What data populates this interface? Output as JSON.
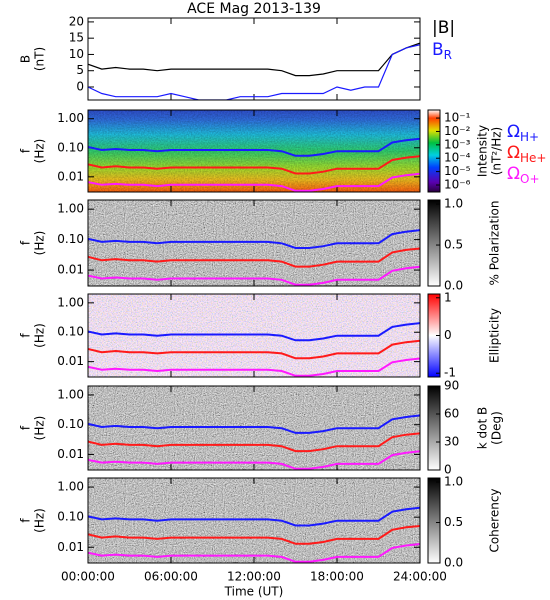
{
  "chart_data": [
    {
      "type": "line",
      "title": "ACE Mag 2013-139",
      "ylabel": [
        "B",
        "(nT)"
      ],
      "x": [
        0,
        1,
        2,
        3,
        4,
        5,
        6,
        7,
        8,
        9,
        10,
        11,
        12,
        13,
        14,
        15,
        16,
        17,
        18,
        19,
        20,
        21,
        22,
        23,
        24
      ],
      "xlim": [
        0,
        24
      ],
      "ylim": [
        -4,
        21.2
      ],
      "yticks": [
        0,
        5,
        10,
        15,
        20
      ],
      "series": [
        {
          "name": "|B|",
          "color": "#000000",
          "values": [
            7,
            5.5,
            6,
            5.5,
            5.5,
            5,
            5.5,
            5.5,
            5.5,
            5.5,
            5.5,
            5.5,
            5.5,
            5.5,
            5,
            3.5,
            3.5,
            4,
            5,
            5,
            5,
            5,
            10,
            12,
            13.5
          ]
        },
        {
          "name": "B",
          "name_sub": "R",
          "color": "#1a1aff",
          "values": [
            0,
            -2,
            -3,
            -3,
            -3,
            -3,
            -2,
            -3,
            -4,
            -4,
            -4,
            -3,
            -3,
            -3,
            -2,
            -2,
            -2,
            -2,
            0,
            -1,
            0,
            0,
            10,
            12,
            13
          ]
        }
      ]
    },
    {
      "type": "spectrogram",
      "ylabel": [
        "f",
        "(Hz)"
      ],
      "log": true,
      "x": [
        0,
        1,
        2,
        3,
        4,
        5,
        6,
        7,
        8,
        9,
        10,
        11,
        12,
        13,
        14,
        15,
        16,
        17,
        18,
        19,
        20,
        21,
        22,
        23,
        24
      ],
      "xlim": [
        0,
        24
      ],
      "ylim": [
        0.003,
        2
      ],
      "yticks": [
        {
          "value": 0.01,
          "label": "0.01"
        },
        {
          "value": 0.1,
          "label": "0.10"
        },
        {
          "value": 1,
          "label": "1.00"
        }
      ],
      "colormap": "rainbow",
      "clabel": [
        "Intensity",
        "(nT²/Hz)"
      ],
      "clog": true,
      "clim": [
        3e-07,
        0.4
      ],
      "cticks": [
        {
          "value": 0.1,
          "label": "10⁻¹"
        },
        {
          "value": 0.01,
          "label": "10⁻²"
        },
        {
          "value": 0.001,
          "label": "10⁻³"
        },
        {
          "value": 0.0001,
          "label": "10⁻⁴"
        },
        {
          "value": 1e-05,
          "label": "10⁻⁵"
        },
        {
          "value": 1e-06,
          "label": "10⁻⁶"
        }
      ],
      "series": [
        {
          "name": "Ω",
          "name_sub": "H+",
          "color": "#1a1aff",
          "values": [
            0.106,
            0.084,
            0.091,
            0.084,
            0.084,
            0.076,
            0.084,
            0.084,
            0.084,
            0.084,
            0.084,
            0.084,
            0.084,
            0.084,
            0.076,
            0.053,
            0.053,
            0.061,
            0.076,
            0.076,
            0.076,
            0.076,
            0.152,
            0.182,
            0.205
          ]
        },
        {
          "name": "Ω",
          "name_sub": "He+",
          "color": "#ff1a1a",
          "values": [
            0.027,
            0.021,
            0.023,
            0.021,
            0.021,
            0.019,
            0.021,
            0.021,
            0.021,
            0.021,
            0.021,
            0.021,
            0.021,
            0.021,
            0.019,
            0.013,
            0.013,
            0.015,
            0.019,
            0.019,
            0.019,
            0.019,
            0.038,
            0.046,
            0.051
          ]
        },
        {
          "name": "Ω",
          "name_sub": "O+",
          "color": "#ff1aff",
          "values": [
            0.0066,
            0.0053,
            0.0057,
            0.0053,
            0.0053,
            0.0048,
            0.0053,
            0.0053,
            0.0053,
            0.0053,
            0.0053,
            0.0053,
            0.0053,
            0.0053,
            0.0048,
            0.0033,
            0.0033,
            0.0038,
            0.0048,
            0.0048,
            0.0048,
            0.0048,
            0.0095,
            0.0114,
            0.0128
          ]
        }
      ]
    },
    {
      "type": "spectrogram",
      "ylabel": [
        "f",
        "(Hz)"
      ],
      "log": true,
      "x": [
        0,
        1,
        2,
        3,
        4,
        5,
        6,
        7,
        8,
        9,
        10,
        11,
        12,
        13,
        14,
        15,
        16,
        17,
        18,
        19,
        20,
        21,
        22,
        23,
        24
      ],
      "xlim": [
        0,
        24
      ],
      "ylim": [
        0.003,
        2
      ],
      "yticks": [
        {
          "value": 0.01,
          "label": "0.01"
        },
        {
          "value": 0.1,
          "label": "0.10"
        },
        {
          "value": 1,
          "label": "1.00"
        }
      ],
      "colormap": "greys",
      "clabel": [
        "% Polarization"
      ],
      "clim": [
        0,
        1.05
      ],
      "cticks": [
        {
          "value": 0,
          "label": "0.0"
        },
        0.5,
        {
          "value": 1,
          "label": "1.0"
        }
      ],
      "series": [
        {
          "color": "#1a1aff",
          "values": [
            0.106,
            0.084,
            0.091,
            0.084,
            0.084,
            0.076,
            0.084,
            0.084,
            0.084,
            0.084,
            0.084,
            0.084,
            0.084,
            0.084,
            0.076,
            0.053,
            0.053,
            0.061,
            0.076,
            0.076,
            0.076,
            0.076,
            0.152,
            0.182,
            0.205
          ]
        },
        {
          "color": "#ff1a1a",
          "values": [
            0.027,
            0.021,
            0.023,
            0.021,
            0.021,
            0.019,
            0.021,
            0.021,
            0.021,
            0.021,
            0.021,
            0.021,
            0.021,
            0.021,
            0.019,
            0.013,
            0.013,
            0.015,
            0.019,
            0.019,
            0.019,
            0.019,
            0.038,
            0.046,
            0.051
          ]
        },
        {
          "color": "#ff1aff",
          "values": [
            0.0066,
            0.0053,
            0.0057,
            0.0053,
            0.0053,
            0.0048,
            0.0053,
            0.0053,
            0.0053,
            0.0053,
            0.0053,
            0.0053,
            0.0053,
            0.0053,
            0.0048,
            0.0033,
            0.0033,
            0.0038,
            0.0048,
            0.0048,
            0.0048,
            0.0048,
            0.0095,
            0.0114,
            0.0128
          ]
        }
      ]
    },
    {
      "type": "spectrogram",
      "ylabel": [
        "f",
        "(Hz)"
      ],
      "log": true,
      "x": [
        0,
        1,
        2,
        3,
        4,
        5,
        6,
        7,
        8,
        9,
        10,
        11,
        12,
        13,
        14,
        15,
        16,
        17,
        18,
        19,
        20,
        21,
        22,
        23,
        24
      ],
      "xlim": [
        0,
        24
      ],
      "ylim": [
        0.003,
        2
      ],
      "yticks": [
        {
          "value": 0.01,
          "label": "0.01"
        },
        {
          "value": 0.1,
          "label": "0.10"
        },
        {
          "value": 1,
          "label": "1.00"
        }
      ],
      "colormap": "bwr",
      "clabel": [
        "Ellipticity"
      ],
      "clim": [
        -1.1,
        1.1
      ],
      "cticks": [
        -1,
        0,
        1
      ],
      "series": [
        {
          "color": "#1a1aff",
          "values": [
            0.106,
            0.084,
            0.091,
            0.084,
            0.084,
            0.076,
            0.084,
            0.084,
            0.084,
            0.084,
            0.084,
            0.084,
            0.084,
            0.084,
            0.076,
            0.053,
            0.053,
            0.061,
            0.076,
            0.076,
            0.076,
            0.076,
            0.152,
            0.182,
            0.205
          ]
        },
        {
          "color": "#ff1a1a",
          "values": [
            0.027,
            0.021,
            0.023,
            0.021,
            0.021,
            0.019,
            0.021,
            0.021,
            0.021,
            0.021,
            0.021,
            0.021,
            0.021,
            0.021,
            0.019,
            0.013,
            0.013,
            0.015,
            0.019,
            0.019,
            0.019,
            0.019,
            0.038,
            0.046,
            0.051
          ]
        },
        {
          "color": "#ff1aff",
          "values": [
            0.0066,
            0.0053,
            0.0057,
            0.0053,
            0.0053,
            0.0048,
            0.0053,
            0.0053,
            0.0053,
            0.0053,
            0.0053,
            0.0053,
            0.0053,
            0.0053,
            0.0048,
            0.0033,
            0.0033,
            0.0038,
            0.0048,
            0.0048,
            0.0048,
            0.0048,
            0.0095,
            0.0114,
            0.0128
          ]
        }
      ]
    },
    {
      "type": "spectrogram",
      "ylabel": [
        "f",
        "(Hz)"
      ],
      "log": true,
      "x": [
        0,
        1,
        2,
        3,
        4,
        5,
        6,
        7,
        8,
        9,
        10,
        11,
        12,
        13,
        14,
        15,
        16,
        17,
        18,
        19,
        20,
        21,
        22,
        23,
        24
      ],
      "xlim": [
        0,
        24
      ],
      "ylim": [
        0.003,
        2
      ],
      "yticks": [
        {
          "value": 0.01,
          "label": "0.01"
        },
        {
          "value": 0.1,
          "label": "0.10"
        },
        {
          "value": 1,
          "label": "1.00"
        }
      ],
      "colormap": "greys",
      "clabel": [
        "k dot B",
        "(Deg)"
      ],
      "clim": [
        0,
        90
      ],
      "cticks": [
        0,
        30,
        60,
        90
      ],
      "series": [
        {
          "color": "#1a1aff",
          "values": [
            0.106,
            0.084,
            0.091,
            0.084,
            0.084,
            0.076,
            0.084,
            0.084,
            0.084,
            0.084,
            0.084,
            0.084,
            0.084,
            0.084,
            0.076,
            0.053,
            0.053,
            0.061,
            0.076,
            0.076,
            0.076,
            0.076,
            0.152,
            0.182,
            0.205
          ]
        },
        {
          "color": "#ff1a1a",
          "values": [
            0.027,
            0.021,
            0.023,
            0.021,
            0.021,
            0.019,
            0.021,
            0.021,
            0.021,
            0.021,
            0.021,
            0.021,
            0.021,
            0.021,
            0.019,
            0.013,
            0.013,
            0.015,
            0.019,
            0.019,
            0.019,
            0.019,
            0.038,
            0.046,
            0.051
          ]
        },
        {
          "color": "#ff1aff",
          "values": [
            0.0066,
            0.0053,
            0.0057,
            0.0053,
            0.0053,
            0.0048,
            0.0053,
            0.0053,
            0.0053,
            0.0053,
            0.0053,
            0.0053,
            0.0053,
            0.0053,
            0.0048,
            0.0033,
            0.0033,
            0.0038,
            0.0048,
            0.0048,
            0.0048,
            0.0048,
            0.0095,
            0.0114,
            0.0128
          ]
        }
      ]
    },
    {
      "type": "spectrogram",
      "ylabel": [
        "f",
        "(Hz)"
      ],
      "log": true,
      "xlabel": "Time (UT)",
      "x": [
        0,
        1,
        2,
        3,
        4,
        5,
        6,
        7,
        8,
        9,
        10,
        11,
        12,
        13,
        14,
        15,
        16,
        17,
        18,
        19,
        20,
        21,
        22,
        23,
        24
      ],
      "xlim": [
        0,
        24
      ],
      "ylim": [
        0.003,
        2
      ],
      "xticks": [
        {
          "value": 0,
          "label": "00:00:00"
        },
        {
          "value": 6,
          "label": "06:00:00"
        },
        {
          "value": 12,
          "label": "12:00:00"
        },
        {
          "value": 18,
          "label": "18:00:00"
        },
        {
          "value": 24,
          "label": "24:00:00"
        }
      ],
      "yticks": [
        {
          "value": 0.01,
          "label": "0.01"
        },
        {
          "value": 0.1,
          "label": "0.10"
        },
        {
          "value": 1,
          "label": "1.00"
        }
      ],
      "colormap": "greys",
      "clabel": [
        "Coherency"
      ],
      "clim": [
        0,
        1.05
      ],
      "cticks": [
        {
          "value": 0,
          "label": "0.0"
        },
        0.5,
        {
          "value": 1,
          "label": "1.0"
        }
      ],
      "series": [
        {
          "color": "#1a1aff",
          "values": [
            0.106,
            0.084,
            0.091,
            0.084,
            0.084,
            0.076,
            0.084,
            0.084,
            0.084,
            0.084,
            0.084,
            0.084,
            0.084,
            0.084,
            0.076,
            0.053,
            0.053,
            0.061,
            0.076,
            0.076,
            0.076,
            0.076,
            0.152,
            0.182,
            0.205
          ]
        },
        {
          "color": "#ff1a1a",
          "values": [
            0.027,
            0.021,
            0.023,
            0.021,
            0.021,
            0.019,
            0.021,
            0.021,
            0.021,
            0.021,
            0.021,
            0.021,
            0.021,
            0.021,
            0.019,
            0.013,
            0.013,
            0.015,
            0.019,
            0.019,
            0.019,
            0.019,
            0.038,
            0.046,
            0.051
          ]
        },
        {
          "color": "#ff1aff",
          "values": [
            0.0066,
            0.0053,
            0.0057,
            0.0053,
            0.0053,
            0.0048,
            0.0053,
            0.0053,
            0.0053,
            0.0053,
            0.0053,
            0.0053,
            0.0053,
            0.0053,
            0.0048,
            0.0033,
            0.0033,
            0.0038,
            0.0048,
            0.0048,
            0.0048,
            0.0048,
            0.0095,
            0.0114,
            0.0128
          ]
        }
      ]
    }
  ]
}
